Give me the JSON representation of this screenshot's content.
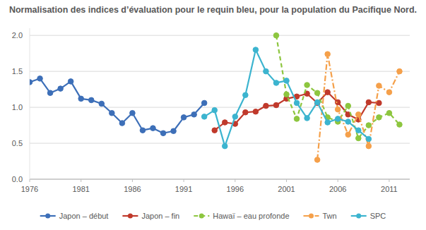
{
  "chart_data": {
    "type": "line",
    "title": "Normalisation des indices d’évaluation pour le requin bleu, pour la population du Pacifique Nord.",
    "xlim": [
      1976,
      2013
    ],
    "xticks": [
      1976,
      1981,
      1986,
      1991,
      1996,
      2001,
      2006,
      2011
    ],
    "ylim": [
      0,
      2.1
    ],
    "yticks": [
      {
        "value": 0,
        "label": "0.0"
      },
      0.5,
      {
        "value": 1,
        "label": "1.0"
      },
      1.5,
      {
        "value": 2,
        "label": "2.0"
      }
    ],
    "grid": true,
    "legend": "bottom",
    "marker": "circle",
    "series": [
      {
        "name": "Japon – début",
        "color": "#3d6fb8",
        "line_style": "solid",
        "x": [
          1976,
          1977,
          1978,
          1979,
          1980,
          1981,
          1982,
          1983,
          1984,
          1985,
          1986,
          1987,
          1988,
          1989,
          1990,
          1991,
          1992,
          1993
        ],
        "values": [
          1.35,
          1.4,
          1.2,
          1.26,
          1.36,
          1.12,
          1.1,
          1.05,
          0.92,
          0.78,
          0.92,
          0.68,
          0.71,
          0.64,
          0.67,
          0.86,
          0.9,
          1.06
        ]
      },
      {
        "name": "Japon – fin",
        "color": "#c0392b",
        "line_style": "solid",
        "x": [
          1994,
          1995,
          1996,
          1997,
          1998,
          1999,
          2000,
          2001,
          2002,
          2003,
          2004,
          2005,
          2006,
          2007,
          2008,
          2009,
          2010
        ],
        "values": [
          0.68,
          0.79,
          0.77,
          0.93,
          0.94,
          1.02,
          1.03,
          1.12,
          1.15,
          1.19,
          1.06,
          1.21,
          1.07,
          0.9,
          0.83,
          1.07,
          1.06
        ]
      },
      {
        "name": "Hawaï – eau profonde",
        "color": "#8dc63f",
        "line_style": "dashed",
        "x": [
          2000,
          2001,
          2002,
          2003,
          2004,
          2005,
          2006,
          2007,
          2008,
          2009,
          2010,
          2011,
          2012
        ],
        "values": [
          2.0,
          1.18,
          0.84,
          1.31,
          1.2,
          0.86,
          0.8,
          1.02,
          0.57,
          0.75,
          0.86,
          0.92,
          0.76
        ]
      },
      {
        "name": "Twn",
        "color": "#f5a04a",
        "line_style": "dashdot",
        "x": [
          2004,
          2005,
          2006,
          2007,
          2008,
          2009,
          2010,
          2011,
          2012
        ],
        "values": [
          0.27,
          1.74,
          0.97,
          0.62,
          0.9,
          0.46,
          1.3,
          1.21,
          1.5
        ]
      },
      {
        "name": "SPC",
        "color": "#3cb4cf",
        "line_style": "solid",
        "x": [
          1993,
          1994,
          1995,
          1996,
          1997,
          1998,
          1999,
          2000,
          2001,
          2002,
          2003,
          2004,
          2005,
          2006,
          2007,
          2008,
          2009
        ],
        "values": [
          0.87,
          0.96,
          0.46,
          0.87,
          1.17,
          1.8,
          1.5,
          1.34,
          1.37,
          1.06,
          0.85,
          1.07,
          0.79,
          0.84,
          0.8,
          0.68,
          0.56
        ]
      }
    ]
  }
}
